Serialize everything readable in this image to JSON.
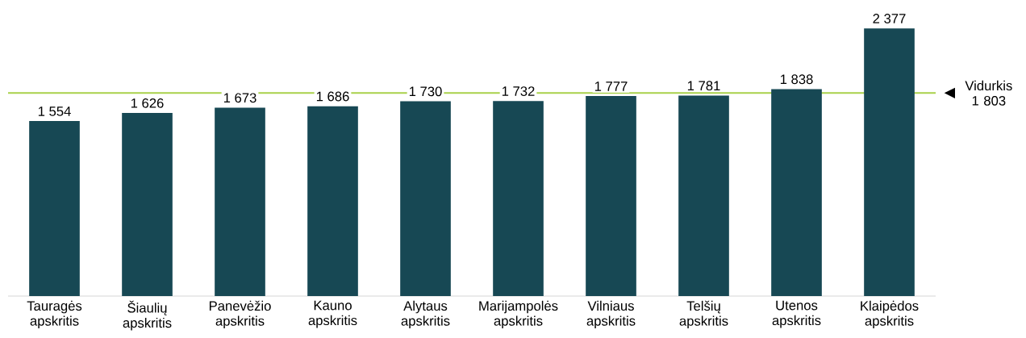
{
  "chart_data": {
    "type": "bar",
    "categories": [
      "Tauragės apskritis",
      "Šiaulių apskritis",
      "Panevėžio apskritis",
      "Kauno apskritis",
      "Alytaus apskritis",
      "Marijampolės apskritis",
      "Vilniaus apskritis",
      "Telšių apskritis",
      "Utenos apskritis",
      "Klaipėdos apskritis"
    ],
    "values": [
      1554,
      1626,
      1673,
      1686,
      1730,
      1732,
      1777,
      1781,
      1838,
      2377
    ],
    "color": "#174854",
    "data_labels": true,
    "value_labels": [
      "1 554",
      "1 626",
      "1 673",
      "1 686",
      "1 730",
      "1 732",
      "1 777",
      "1 781",
      "1 838",
      "2 377"
    ],
    "ref_lines": [
      {
        "axis": "y",
        "value": 1803,
        "label": "Vidurkis 1 803",
        "color": "#a9d14a"
      }
    ]
  }
}
